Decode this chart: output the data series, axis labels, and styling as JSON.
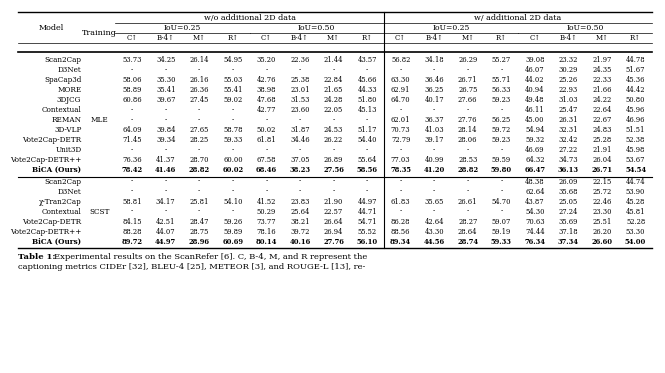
{
  "title_bold": "Table 1:",
  "title_rest": " Experimental results on the ScanRefer [6]. C, B-4, M, and R represent the captioning metrics CIDEr [32], BLEU-4 [25], METEOR [3], and ROUGE-L [13], re-",
  "mle_rows": [
    {
      "model": "Scan2Cap",
      "training": "",
      "data": [
        "53.73",
        "34.25",
        "26.14",
        "54.95",
        "35.20",
        "22.36",
        "21.44",
        "43.57",
        "56.82",
        "34.18",
        "26.29",
        "55.27",
        "39.08",
        "23.32",
        "21.97",
        "44.78"
      ]
    },
    {
      "model": "D3Net",
      "training": "",
      "data": [
        "-",
        "-",
        "-",
        "-",
        "-",
        "-",
        "-",
        "-",
        "-",
        "-",
        "-",
        "-",
        "46.07",
        "30.29",
        "24.35",
        "51.67"
      ]
    },
    {
      "model": "SpaCap3d",
      "training": "",
      "data": [
        "58.06",
        "35.30",
        "26.16",
        "55.03",
        "42.76",
        "25.38",
        "22.84",
        "45.66",
        "63.30",
        "36.46",
        "26.71",
        "55.71",
        "44.02",
        "25.26",
        "22.33",
        "45.36"
      ]
    },
    {
      "model": "MORE",
      "training": "",
      "data": [
        "58.89",
        "35.41",
        "26.36",
        "55.41",
        "38.98",
        "23.01",
        "21.65",
        "44.33",
        "62.91",
        "36.25",
        "26.75",
        "56.33",
        "40.94",
        "22.93",
        "21.66",
        "44.42"
      ]
    },
    {
      "model": "3DJCG",
      "training": "",
      "data": [
        "60.86",
        "39.67",
        "27.45",
        "59.02",
        "47.68",
        "31.53",
        "24.28",
        "51.80",
        "64.70",
        "40.17",
        "27.66",
        "59.23",
        "49.48",
        "31.03",
        "24.22",
        "50.80"
      ]
    },
    {
      "model": "Contextual",
      "training": "",
      "data": [
        "-",
        "-",
        "-",
        "-",
        "42.77",
        "23.60",
        "22.05",
        "45.13",
        "-",
        "-",
        "-",
        "-",
        "46.11",
        "25.47",
        "22.64",
        "45.96"
      ]
    },
    {
      "model": "REMAN",
      "training": "MLE",
      "data": [
        "-",
        "-",
        "-",
        "-",
        "-",
        "-",
        "-",
        "-",
        "62.01",
        "36.37",
        "27.76",
        "56.25",
        "45.00",
        "26.31",
        "22.67",
        "46.96"
      ]
    },
    {
      "model": "3D-VLP",
      "training": "",
      "data": [
        "64.09",
        "39.84",
        "27.65",
        "58.78",
        "50.02",
        "31.87",
        "24.53",
        "51.17",
        "70.73",
        "41.03",
        "28.14",
        "59.72",
        "54.94",
        "32.31",
        "24.83",
        "51.51"
      ]
    },
    {
      "model": "Vote2Cap-DETR",
      "training": "",
      "data": [
        "71.45",
        "39.34",
        "28.25",
        "59.33",
        "61.81",
        "34.46",
        "26.22",
        "54.40",
        "72.79",
        "39.17",
        "28.06",
        "59.23",
        "59.32",
        "32.42",
        "25.28",
        "52.38"
      ]
    },
    {
      "model": "Unit3D",
      "training": "",
      "data": [
        "-",
        "-",
        "-",
        "-",
        "-",
        "-",
        "-",
        "-",
        "-",
        "-",
        "-",
        "-",
        "46.69",
        "27.22",
        "21.91",
        "45.98"
      ]
    },
    {
      "model": "Vote2Cap-DETR++",
      "training": "",
      "data": [
        "76.36",
        "41.37",
        "28.70",
        "60.00",
        "67.58",
        "37.05",
        "26.89",
        "55.64",
        "77.03",
        "40.99",
        "28.53",
        "59.59",
        "64.32",
        "34.73",
        "26.04",
        "53.67"
      ]
    },
    {
      "model": "BiCA (Ours)",
      "training": "",
      "bold": true,
      "data": [
        "78.42",
        "41.46",
        "28.82",
        "60.02",
        "68.46",
        "38.23",
        "27.56",
        "58.56",
        "78.35",
        "41.20",
        "28.82",
        "59.80",
        "66.47",
        "36.13",
        "26.71",
        "54.54"
      ]
    }
  ],
  "scst_rows": [
    {
      "model": "Scan2Cap",
      "training": "",
      "data": [
        "-",
        "-",
        "-",
        "-",
        "-",
        "-",
        "-",
        "-",
        "-",
        "-",
        "-",
        "-",
        "48.38",
        "26.09",
        "22.15",
        "44.74"
      ]
    },
    {
      "model": "D3Net",
      "training": "",
      "data": [
        "-",
        "-",
        "-",
        "-",
        "-",
        "-",
        "-",
        "-",
        "-",
        "-",
        "-",
        "-",
        "62.64",
        "35.68",
        "25.72",
        "53.90"
      ]
    },
    {
      "model": "χ-Tran2Cap",
      "training": "",
      "data": [
        "58.81",
        "34.17",
        "25.81",
        "54.10",
        "41.52",
        "23.83",
        "21.90",
        "44.97",
        "61.83",
        "35.65",
        "26.61",
        "54.70",
        "43.87",
        "25.05",
        "22.46",
        "45.28"
      ]
    },
    {
      "model": "Contextual",
      "training": "SCST",
      "data": [
        "-",
        "-",
        "-",
        "-",
        "50.29",
        "25.64",
        "22.57",
        "44.71",
        "-",
        "-",
        "-",
        "-",
        "54.30",
        "27.24",
        "23.30",
        "45.81"
      ]
    },
    {
      "model": "Vote2Cap-DETR",
      "training": "",
      "data": [
        "84.15",
        "42.51",
        "28.47",
        "59.26",
        "73.77",
        "38.21",
        "26.64",
        "54.71",
        "86.28",
        "42.64",
        "28.27",
        "59.07",
        "70.63",
        "35.69",
        "25.51",
        "52.28"
      ]
    },
    {
      "model": "Vote2Cap-DETR++",
      "training": "",
      "data": [
        "88.28",
        "44.07",
        "28.75",
        "59.89",
        "78.16",
        "39.72",
        "26.94",
        "55.52",
        "88.56",
        "43.30",
        "28.64",
        "59.19",
        "74.44",
        "37.18",
        "26.20",
        "53.30"
      ]
    },
    {
      "model": "BiCA (Ours)",
      "training": "",
      "bold": true,
      "data": [
        "89.72",
        "44.97",
        "28.96",
        "60.69",
        "80.14",
        "40.16",
        "27.76",
        "56.10",
        "89.34",
        "44.56",
        "28.74",
        "59.33",
        "76.34",
        "37.34",
        "26.60",
        "54.00"
      ]
    }
  ],
  "background_color": "#ffffff"
}
